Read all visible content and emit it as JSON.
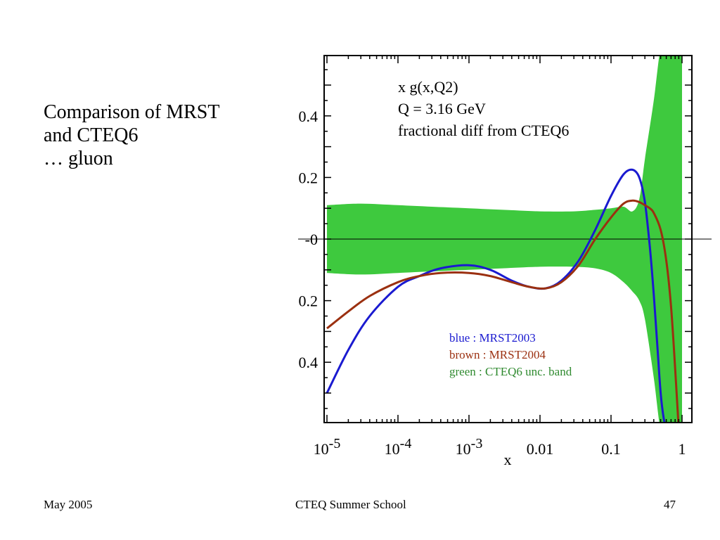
{
  "slide": {
    "title_lines": [
      "Comparison of MRST",
      "and CTEQ6",
      "… gluon"
    ]
  },
  "footer": {
    "date": "May 2005",
    "event": "CTEQ Summer School",
    "page": "47"
  },
  "chart_data": {
    "type": "line",
    "annotation_lines": [
      "x g(x,Q2)",
      "Q = 3.16 GeV",
      "fractional diff from CTEQ6"
    ],
    "xlabel": "x",
    "ylabel": "",
    "x_scale": "log",
    "xlim": [
      1e-05,
      1
    ],
    "ylim": [
      -0.6,
      0.6
    ],
    "x_ticks": [
      {
        "value": 1e-05,
        "base": "10",
        "exp": "-5"
      },
      {
        "value": 0.0001,
        "base": "10",
        "exp": "-4"
      },
      {
        "value": 0.001,
        "base": "10",
        "exp": "-3"
      },
      {
        "value": 0.01,
        "label": "0.01"
      },
      {
        "value": 0.1,
        "label": "0.1"
      },
      {
        "value": 1,
        "label": "1"
      }
    ],
    "y_ticks": [
      {
        "value": 0.4,
        "label": "0.4"
      },
      {
        "value": 0.2,
        "label": "0.2"
      },
      {
        "value": 0.0,
        "label": "-0"
      },
      {
        "value": -0.2,
        "label": "0.2"
      },
      {
        "value": -0.4,
        "label": "0.4"
      }
    ],
    "grid": false,
    "legend_lines": [
      {
        "text": "blue : MRST2003",
        "color": "#1a1ad0"
      },
      {
        "text": "brown : MRST2004",
        "color": "#9b3010"
      },
      {
        "text": "green : CTEQ6 unc. band",
        "color": "#2f8a2f"
      }
    ],
    "band": {
      "color": "#3ec93e",
      "x": [
        1e-05,
        3e-05,
        0.0001,
        0.0003,
        0.001,
        0.003,
        0.01,
        0.03,
        0.06,
        0.1,
        0.15,
        0.2,
        0.25,
        0.3,
        0.4,
        0.5,
        0.6,
        0.7,
        0.8,
        0.9,
        1.0
      ],
      "upper": [
        0.11,
        0.115,
        0.11,
        0.105,
        0.1,
        0.095,
        0.09,
        0.09,
        0.095,
        0.1,
        0.105,
        0.09,
        0.13,
        0.26,
        0.45,
        0.62,
        0.62,
        0.62,
        0.62,
        0.62,
        0.62
      ],
      "lower": [
        -0.11,
        -0.115,
        -0.11,
        -0.105,
        -0.1,
        -0.095,
        -0.09,
        -0.09,
        -0.095,
        -0.11,
        -0.14,
        -0.17,
        -0.2,
        -0.26,
        -0.45,
        -0.62,
        -0.62,
        -0.62,
        -0.62,
        -0.62,
        -0.62
      ]
    },
    "series": [
      {
        "color": "#1a1ad0",
        "x": [
          1e-05,
          2e-05,
          4e-05,
          0.0001,
          0.0002,
          0.0004,
          0.001,
          0.002,
          0.004,
          0.007,
          0.012,
          0.02,
          0.035,
          0.06,
          0.1,
          0.15,
          0.2,
          0.25,
          0.3,
          0.35,
          0.4,
          0.45,
          0.5,
          0.55,
          0.6
        ],
        "y": [
          -0.5,
          -0.36,
          -0.25,
          -0.155,
          -0.12,
          -0.095,
          -0.085,
          -0.1,
          -0.135,
          -0.155,
          -0.16,
          -0.135,
          -0.07,
          0.03,
          0.14,
          0.21,
          0.225,
          0.2,
          0.12,
          -0.02,
          -0.18,
          -0.35,
          -0.5,
          -0.58,
          -0.62
        ]
      },
      {
        "color": "#9b3010",
        "x": [
          1e-05,
          2e-05,
          4e-05,
          0.0001,
          0.0002,
          0.0004,
          0.001,
          0.002,
          0.004,
          0.007,
          0.012,
          0.02,
          0.035,
          0.06,
          0.1,
          0.15,
          0.2,
          0.25,
          0.3,
          0.35,
          0.4,
          0.5,
          0.6,
          0.7,
          0.8,
          0.9
        ],
        "y": [
          -0.29,
          -0.235,
          -0.185,
          -0.14,
          -0.12,
          -0.11,
          -0.11,
          -0.12,
          -0.14,
          -0.155,
          -0.16,
          -0.14,
          -0.085,
          0.0,
          0.07,
          0.115,
          0.125,
          0.12,
          0.11,
          0.1,
          0.085,
          0.03,
          -0.07,
          -0.22,
          -0.42,
          -0.62
        ]
      }
    ]
  }
}
